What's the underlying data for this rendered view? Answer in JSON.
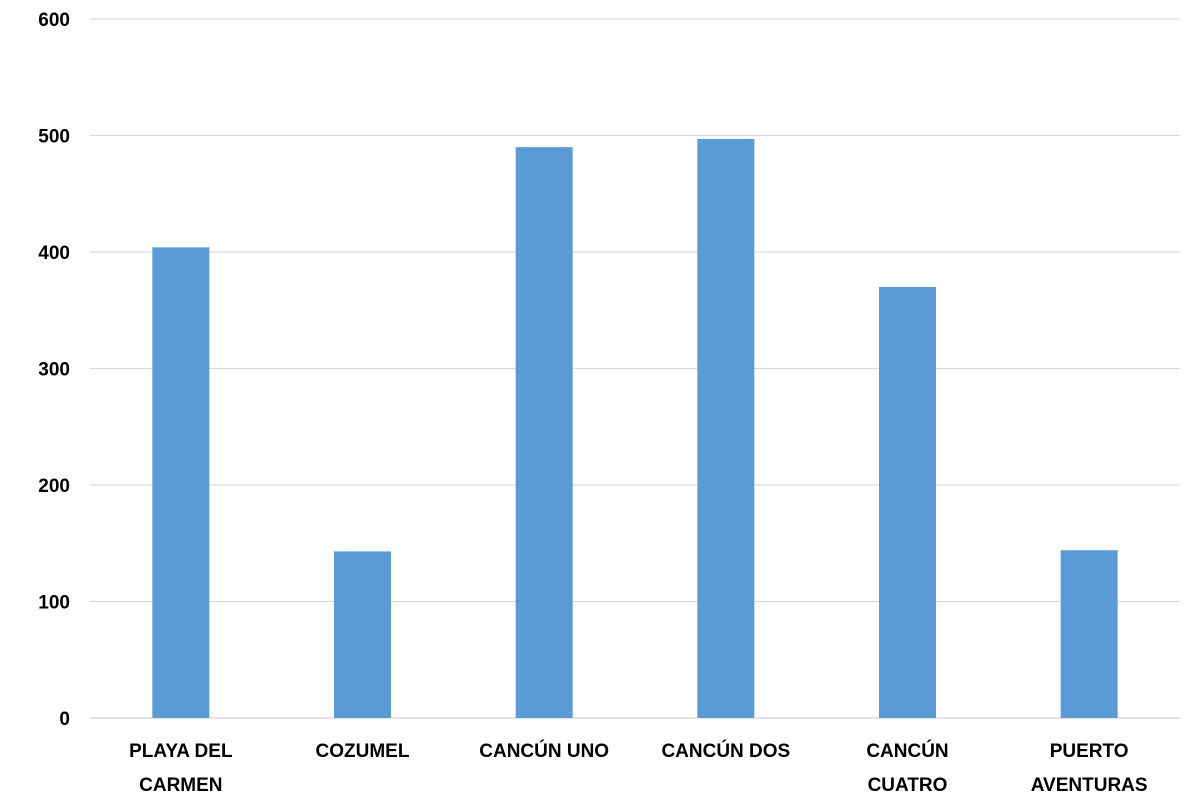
{
  "chart_data": {
    "type": "bar",
    "categories": [
      [
        "PLAYA DEL",
        "CARMEN"
      ],
      [
        "COZUMEL"
      ],
      [
        "CANCÚN UNO"
      ],
      [
        "CANCÚN DOS"
      ],
      [
        "CANCÚN",
        "CUATRO"
      ],
      [
        "PUERTO",
        "AVENTURAS"
      ]
    ],
    "values": [
      404,
      143,
      490,
      497,
      370,
      144
    ],
    "ylim": [
      0,
      600
    ],
    "yticks": [
      "0",
      "100",
      "200",
      "300",
      "400",
      "500",
      "600"
    ],
    "grid": true,
    "bar_color": "#5B9BD5",
    "grid_color": "#D9D9D9"
  }
}
